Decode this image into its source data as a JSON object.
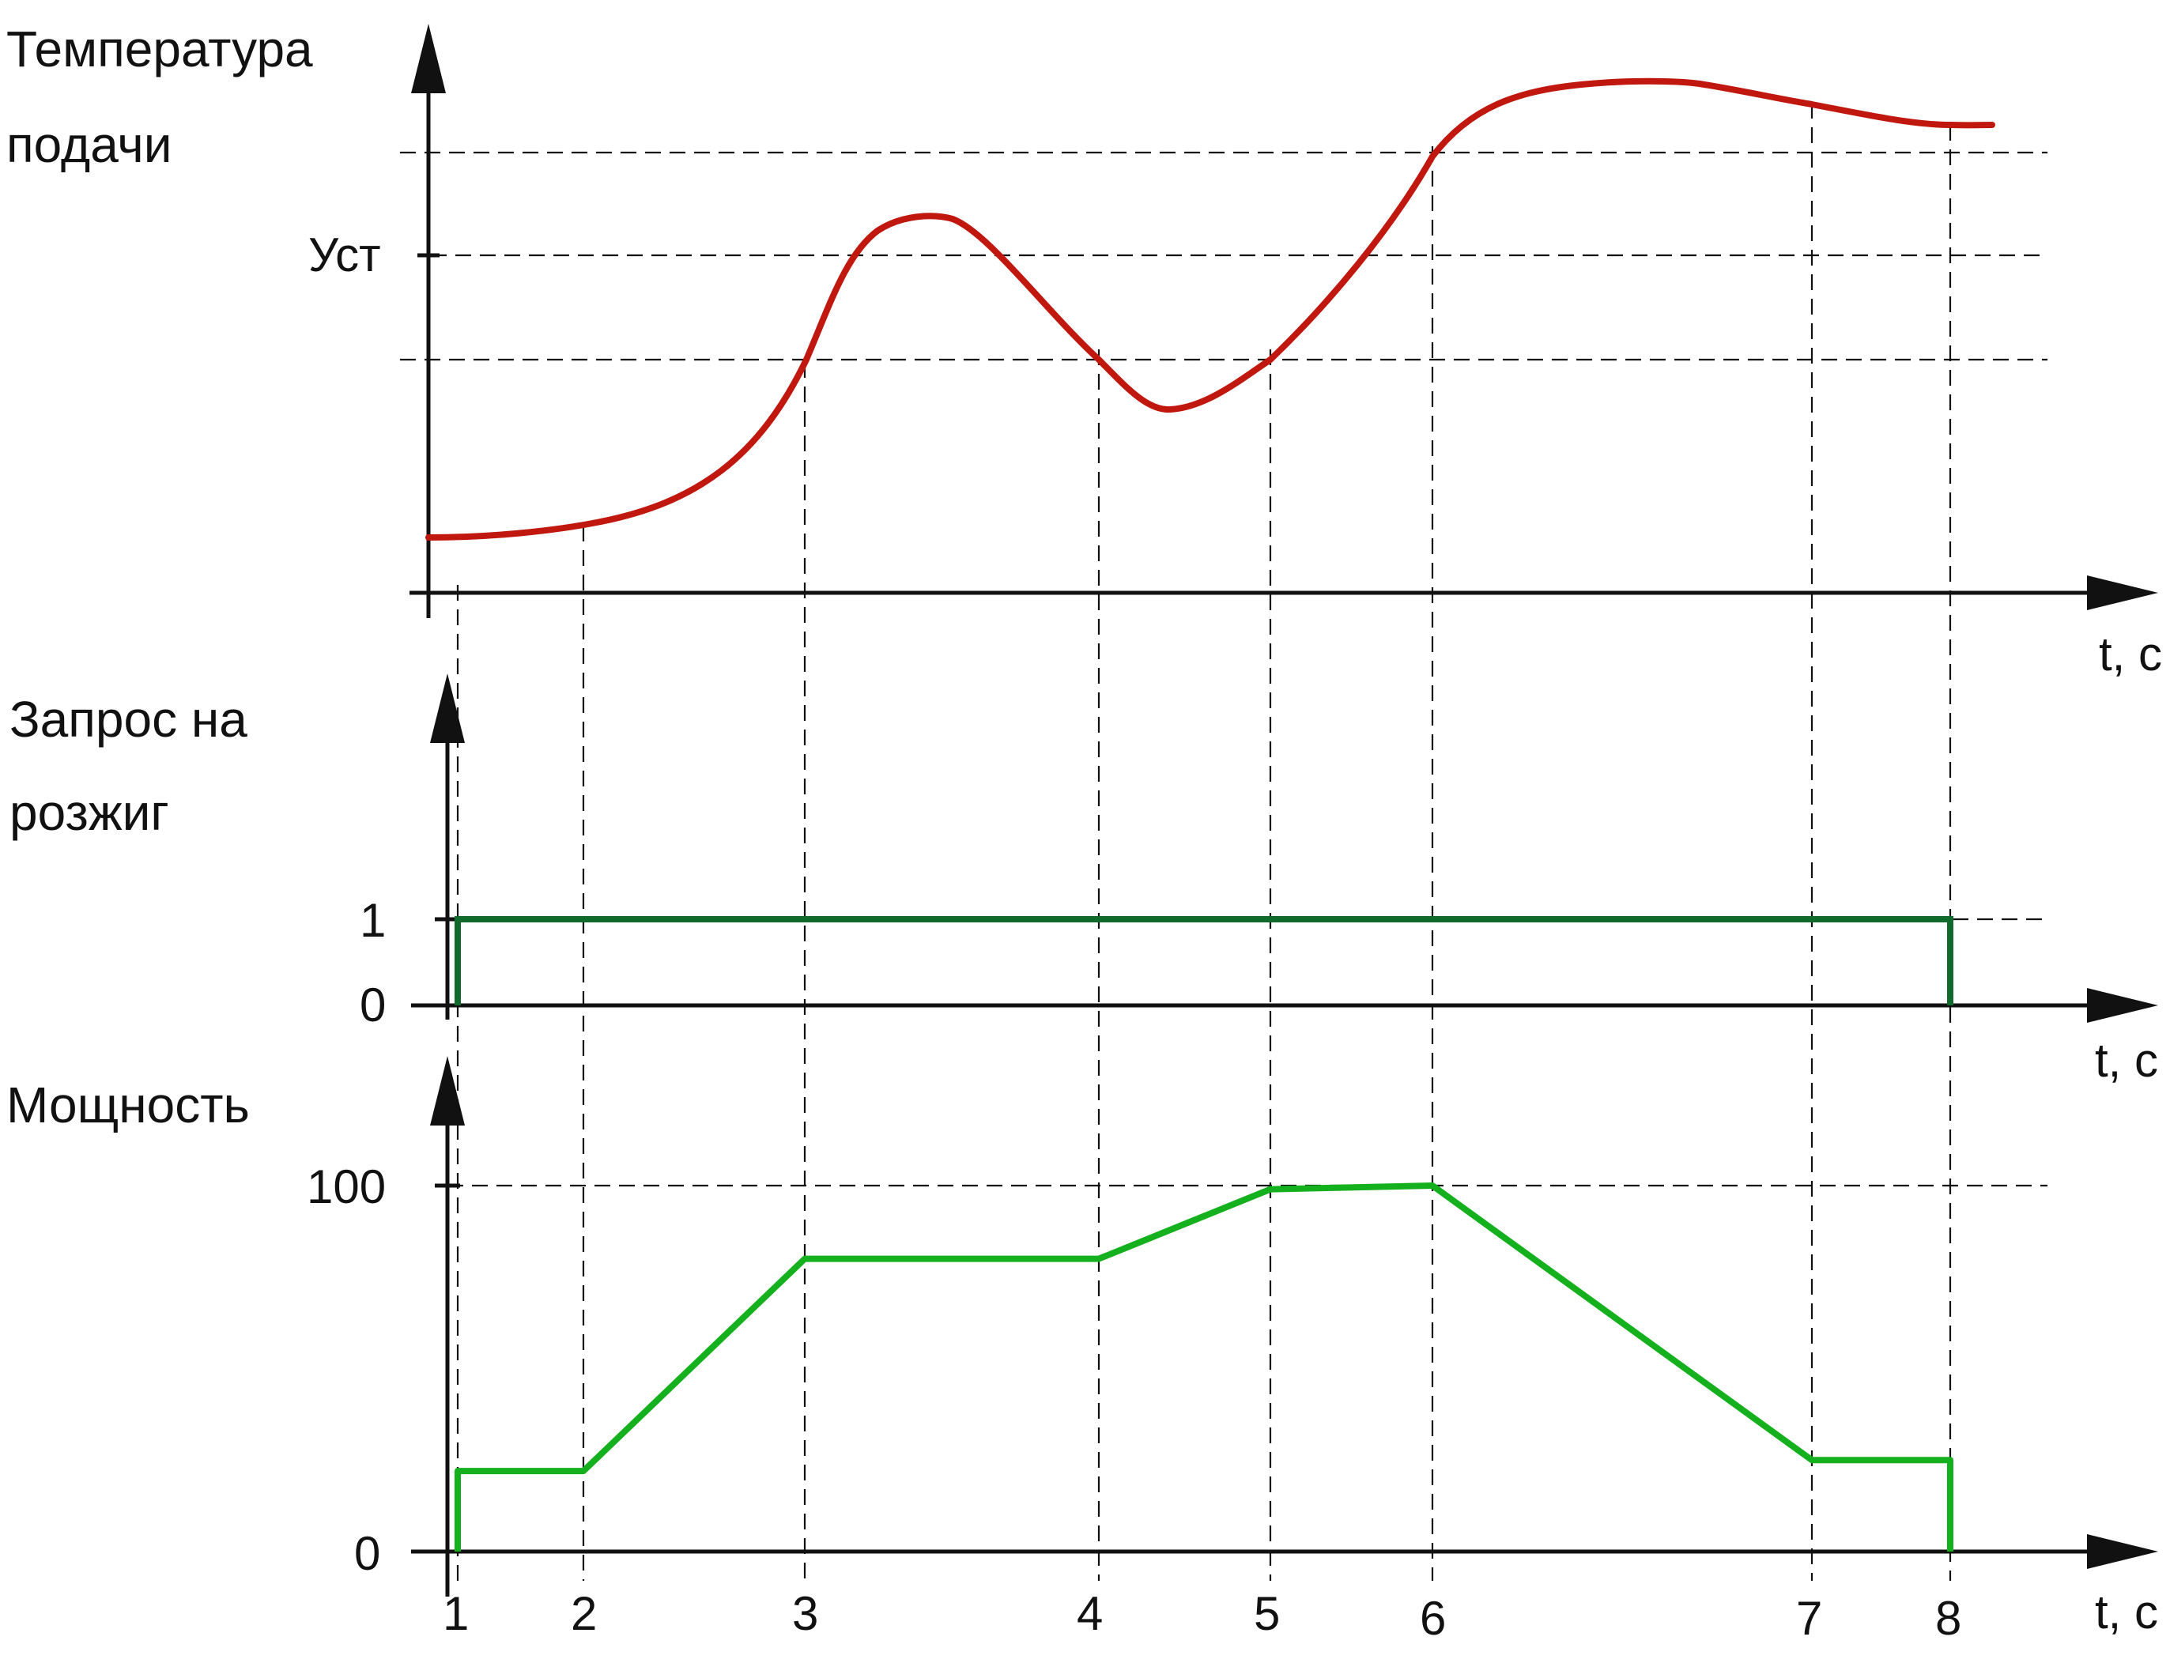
{
  "panels": {
    "temperature": {
      "ylabel_line1": "Температура",
      "ylabel_line2": "подачи",
      "setpoint_label": "Уст",
      "xlabel": "t, c"
    },
    "ignition": {
      "ylabel_line1": "Запрос на",
      "ylabel_line2": "розжиг",
      "tick_high": "1",
      "tick_low": "0",
      "xlabel": "t, c"
    },
    "power": {
      "ylabel": "Мощность",
      "tick_high": "100",
      "tick_low": "0",
      "xlabel": "t, c"
    }
  },
  "time_marks": [
    "1",
    "2",
    "3",
    "4",
    "5",
    "6",
    "7",
    "8"
  ],
  "colors": {
    "temperature_curve": "#c0180f",
    "ignition_signal": "#0f6a2c",
    "power_curve": "#15b01d",
    "axes": "#111111"
  },
  "chart_data": {
    "type": "line",
    "x": [
      1,
      2,
      3,
      4,
      5,
      6,
      7,
      8
    ],
    "series": [
      {
        "values": [
          0.1,
          0.14,
          0.6,
          0.6,
          0.6,
          1.0,
          1.16,
          1.12
        ]
      },
      {
        "values": [
          1,
          1,
          1,
          1,
          1,
          1,
          1,
          1
        ]
      },
      {
        "values": [
          22,
          22,
          80,
          80,
          99,
          100,
          25,
          25
        ]
      }
    ]
  }
}
